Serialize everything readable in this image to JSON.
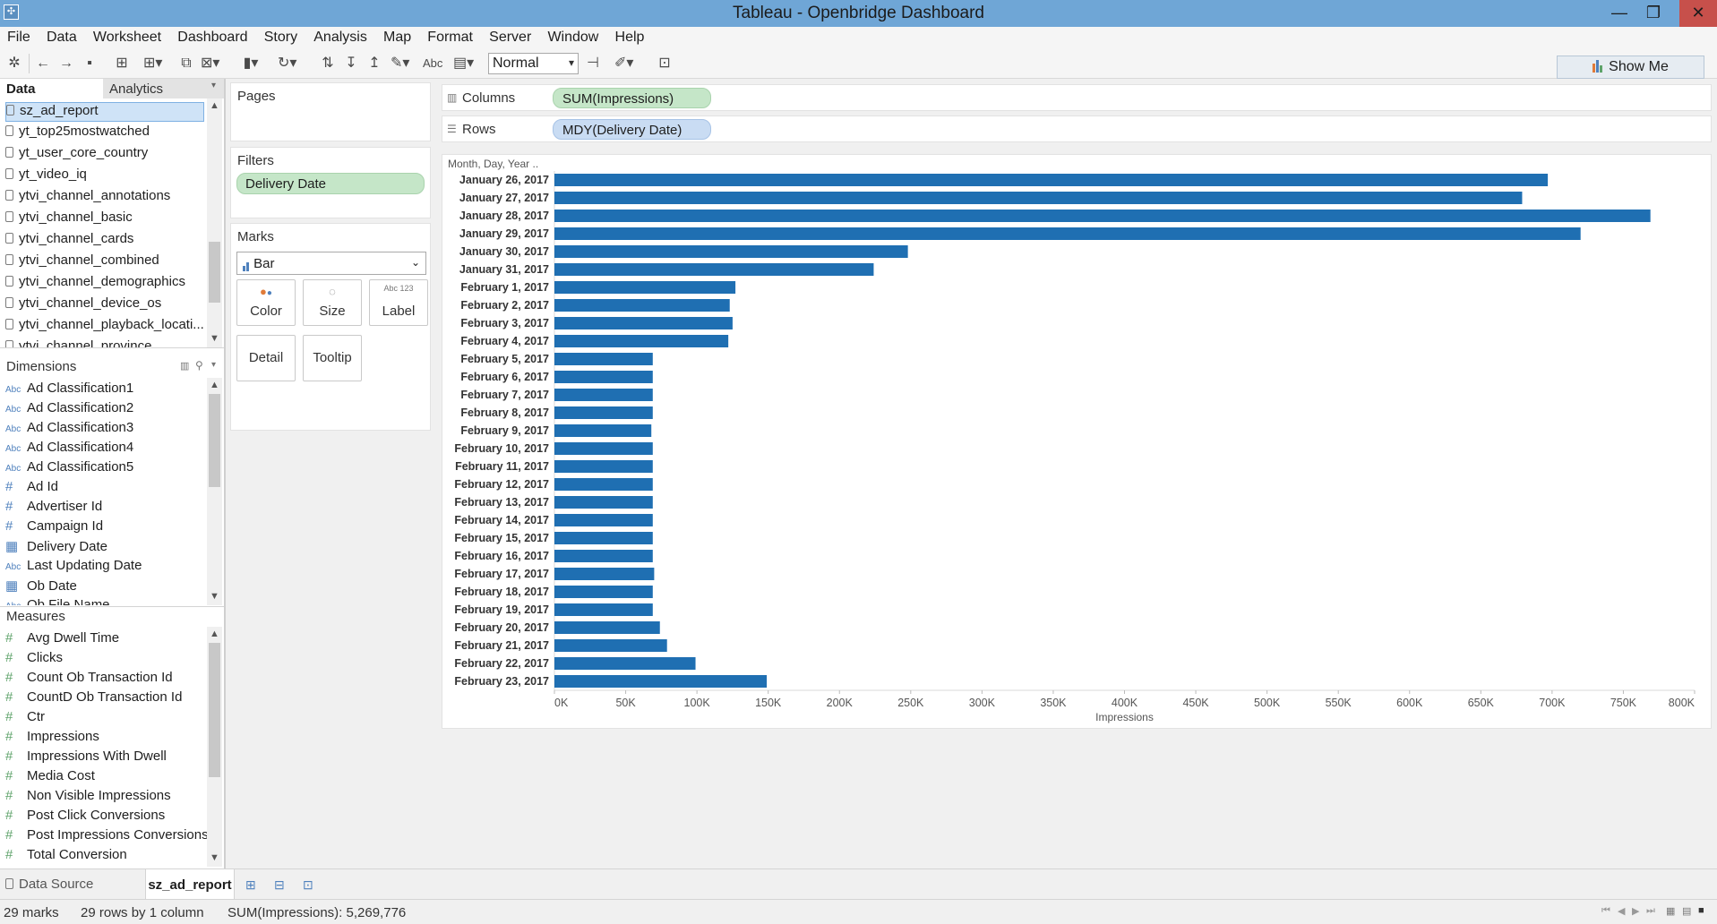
{
  "window": {
    "title": "Tableau - Openbridge Dashboard",
    "minimize": "—",
    "maximize": "❐",
    "close": "✕"
  },
  "menu": [
    "File",
    "Data",
    "Worksheet",
    "Dashboard",
    "Story",
    "Analysis",
    "Map",
    "Format",
    "Server",
    "Window",
    "Help"
  ],
  "toolbar": {
    "fit_value": "Normal",
    "abc_label": "Abc",
    "show_me_label": "Show Me"
  },
  "data_pane": {
    "tab_data": "Data",
    "tab_analytics": "Analytics",
    "data_sources": [
      "sz_ad_report",
      "yt_top25mostwatched",
      "yt_user_core_country",
      "yt_video_iq",
      "ytvi_channel_annotations",
      "ytvi_channel_basic",
      "ytvi_channel_cards",
      "ytvi_channel_combined",
      "ytvi_channel_demographics",
      "ytvi_channel_device_os",
      "ytvi_channel_playback_locati...",
      "ytvi_channel_province"
    ],
    "dimensions_title": "Dimensions",
    "dimensions": [
      {
        "icon": "Abc",
        "name": "Ad Classification1"
      },
      {
        "icon": "Abc",
        "name": "Ad Classification2"
      },
      {
        "icon": "Abc",
        "name": "Ad Classification3"
      },
      {
        "icon": "Abc",
        "name": "Ad Classification4"
      },
      {
        "icon": "Abc",
        "name": "Ad Classification5"
      },
      {
        "icon": "#",
        "name": "Ad Id"
      },
      {
        "icon": "#",
        "name": "Advertiser Id"
      },
      {
        "icon": "#",
        "name": "Campaign Id"
      },
      {
        "icon": "▦",
        "name": "Delivery Date"
      },
      {
        "icon": "Abc",
        "name": "Last Updating Date"
      },
      {
        "icon": "▦",
        "name": "Ob Date"
      },
      {
        "icon": "Abc",
        "name": "Ob File Name"
      }
    ],
    "measures_title": "Measures",
    "measures": [
      "Avg Dwell Time",
      "Clicks",
      "Count Ob Transaction Id",
      "CountD Ob Transaction Id",
      "Ctr",
      "Impressions",
      "Impressions With Dwell",
      "Media Cost",
      "Non Visible Impressions",
      "Post Click Conversions",
      "Post Impressions Conversions",
      "Total Conversion"
    ]
  },
  "shelves": {
    "pages_title": "Pages",
    "filters_title": "Filters",
    "filter_pill": "Delivery Date",
    "marks_title": "Marks",
    "mark_type": "Bar",
    "mark_buttons": [
      "Color",
      "Size",
      "Label",
      "Detail",
      "Tooltip"
    ],
    "label_icon_text": "Abc 123",
    "columns_label": "Columns",
    "columns_pill": "SUM(Impressions)",
    "rows_label": "Rows",
    "rows_pill": "MDY(Delivery Date)"
  },
  "chart_data": {
    "type": "bar",
    "orientation": "horizontal",
    "row_header": "Month, Day, Year ..",
    "xlabel": "Impressions",
    "xlim": [
      0,
      800000
    ],
    "x_ticks": [
      "0K",
      "50K",
      "100K",
      "150K",
      "200K",
      "250K",
      "300K",
      "350K",
      "400K",
      "450K",
      "500K",
      "550K",
      "600K",
      "650K",
      "700K",
      "750K",
      "800K"
    ],
    "categories": [
      "January 26, 2017",
      "January 27, 2017",
      "January 28, 2017",
      "January 29, 2017",
      "January 30, 2017",
      "January 31, 2017",
      "February 1, 2017",
      "February 2, 2017",
      "February 3, 2017",
      "February 4, 2017",
      "February 5, 2017",
      "February 6, 2017",
      "February 7, 2017",
      "February 8, 2017",
      "February 9, 2017",
      "February 10, 2017",
      "February 11, 2017",
      "February 12, 2017",
      "February 13, 2017",
      "February 14, 2017",
      "February 15, 2017",
      "February 16, 2017",
      "February 17, 2017",
      "February 18, 2017",
      "February 19, 2017",
      "February 20, 2017",
      "February 21, 2017",
      "February 22, 2017",
      "February 23, 2017"
    ],
    "values": [
      697000,
      679000,
      769000,
      720000,
      248000,
      224000,
      127000,
      123000,
      125000,
      122000,
      69000,
      69000,
      69000,
      69000,
      68000,
      69000,
      69000,
      69000,
      69000,
      69000,
      69000,
      69000,
      70000,
      69000,
      69000,
      74000,
      79000,
      99000,
      149000
    ],
    "bar_color": "#1f6fb2"
  },
  "sheet_tabs": {
    "data_source": "Data Source",
    "active_sheet": "sz_ad_report"
  },
  "status": {
    "marks": "29 marks",
    "rows_cols": "29 rows by 1 column",
    "sum": "SUM(Impressions): 5,269,776"
  }
}
